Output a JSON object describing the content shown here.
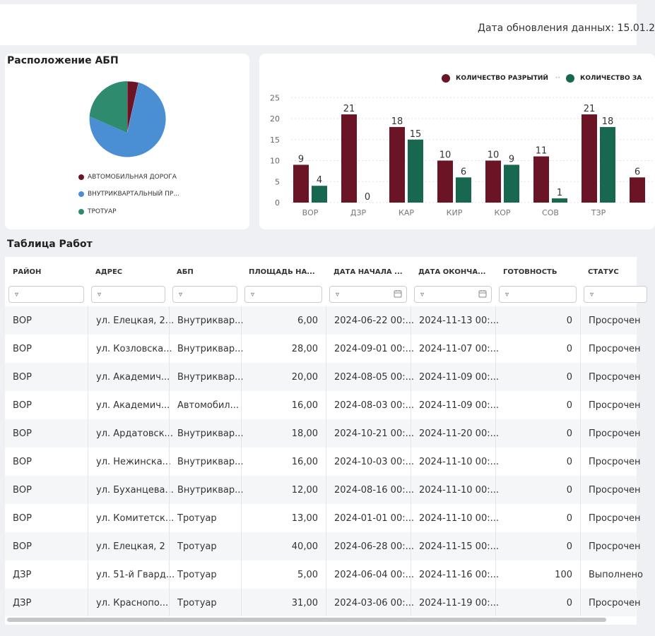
{
  "header": {
    "update_text": "Дата обновления данных: 15.01.2"
  },
  "pie": {
    "title": "Расположение АБП",
    "legend": [
      {
        "label": "АВТОМОБИЛЬНАЯ ДОРОГА",
        "color": "#6b1426"
      },
      {
        "label": "ВНУТРИКВАРТАЛЬНЫЙ ПР...",
        "color": "#4a8fd4"
      },
      {
        "label": "ТРОТУАР",
        "color": "#2e8b6e"
      }
    ]
  },
  "chart_data": {
    "type": "bar",
    "categories": [
      "ВОР",
      "ДЗР",
      "КАР",
      "КИР",
      "КОР",
      "СОВ",
      "ТЗР",
      ""
    ],
    "series": [
      {
        "name": "КОЛИЧЕСТВО РАЗРЫТИЙ",
        "color": "#6b1426",
        "values": [
          9,
          21,
          18,
          10,
          10,
          11,
          21,
          6
        ]
      },
      {
        "name": "КОЛИЧЕСТВО ЗА",
        "color": "#17684f",
        "values": [
          4,
          0,
          15,
          6,
          9,
          1,
          18,
          null
        ]
      }
    ],
    "yticks": [
      0,
      5,
      10,
      15,
      20,
      25
    ],
    "ylim": [
      0,
      25
    ],
    "grid": true,
    "legend_position": "top"
  },
  "table": {
    "title": "Таблица Работ",
    "columns": [
      "РАЙОН",
      "АДРЕС",
      "АБП",
      "ПЛОЩАДЬ НА...",
      "ДАТА НАЧАЛА ...",
      "ДАТА ОКОНЧА...",
      "ГОТОВНОСТЬ",
      "СТАТУС"
    ],
    "filter_icon": "▿",
    "rows": [
      [
        "ВОР",
        "ул. Елецкая, 2...",
        "Внутриквар...",
        "6,00",
        "2024-06-22 00:...",
        "2024-11-13 00:...",
        "0",
        "Просрочен"
      ],
      [
        "ВОР",
        "ул. Козловска...",
        "Внутриквар...",
        "28,00",
        "2024-09-01 00:...",
        "2024-11-07 00:...",
        "0",
        "Просрочен"
      ],
      [
        "ВОР",
        "ул. Академич...",
        "Внутриквар...",
        "20,00",
        "2024-08-05 00:...",
        "2024-11-09 00:...",
        "0",
        "Просрочен"
      ],
      [
        "ВОР",
        "ул. Академич...",
        "Автомобил...",
        "16,00",
        "2024-08-03 00:...",
        "2024-11-09 00:...",
        "0",
        "Просрочен"
      ],
      [
        "ВОР",
        "ул. Ардатовск...",
        "Внутриквар...",
        "18,00",
        "2024-10-21 00:...",
        "2024-11-20 00:...",
        "0",
        "Просрочен"
      ],
      [
        "ВОР",
        "ул. Нежинска...",
        "Внутриквар...",
        "16,00",
        "2024-10-03 00:...",
        "2024-11-10 00:...",
        "0",
        "Просрочен"
      ],
      [
        "ВОР",
        "ул. Буханцева...",
        "Внутриквар...",
        "12,00",
        "2024-08-16 00:...",
        "2024-11-10 00:...",
        "0",
        "Просрочен"
      ],
      [
        "ВОР",
        "ул. Комитетск...",
        "Тротуар",
        "13,00",
        "2024-01-01 00:...",
        "2024-11-10 00:...",
        "0",
        "Просрочен"
      ],
      [
        "ВОР",
        "ул. Елецкая, 2",
        "Тротуар",
        "40,00",
        "2024-06-28 00:...",
        "2024-11-15 00:...",
        "0",
        "Просрочен"
      ],
      [
        "ДЗР",
        "ул. 51-й Гвард...",
        "Тротуар",
        "5,00",
        "2024-06-04 00:...",
        "2024-11-16 00:...",
        "100",
        "Выполнено"
      ],
      [
        "ДЗР",
        "ул. Краснопо...",
        "Тротуар",
        "31,00",
        "2024-03-06 00:...",
        "2024-11-19 00:...",
        "0",
        "Просрочен"
      ]
    ]
  }
}
